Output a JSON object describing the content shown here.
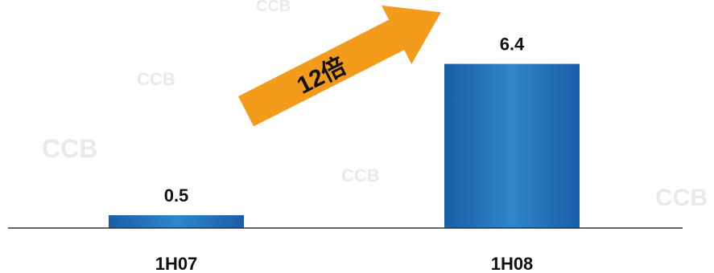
{
  "chart_data": {
    "type": "bar",
    "categories": [
      "1H07",
      "1H08"
    ],
    "values": [
      0.5,
      6.4
    ],
    "data_labels": [
      "0.5",
      "6.4"
    ],
    "ylim": [
      0,
      7.2
    ],
    "grid": false,
    "bar_color": "#2a73b8",
    "annotation": {
      "text": "12倍",
      "color": "#f39c1c"
    }
  },
  "watermark": "CCB"
}
